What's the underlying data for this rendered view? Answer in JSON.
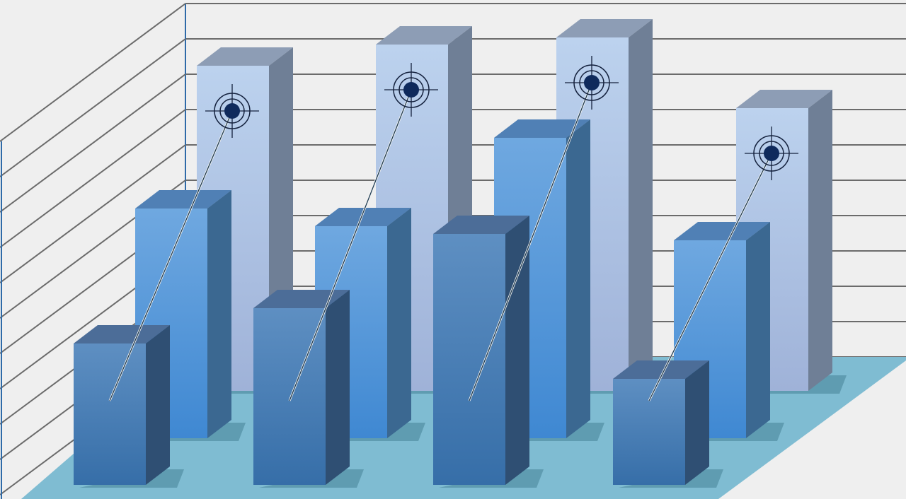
{
  "chart_data": {
    "type": "bar",
    "title": "",
    "xlabel": "",
    "ylabel": "",
    "grid": true,
    "style": "3d-clustered",
    "categories": [
      "",
      "",
      "",
      ""
    ],
    "series": [
      {
        "values": [
          9.2,
          9.8,
          10.0,
          8.0
        ],
        "has_target_marker": true
      },
      {
        "values": [
          6.5,
          6.0,
          8.5,
          5.6
        ]
      },
      {
        "values": [
          4.0,
          5.0,
          7.1,
          3.0
        ]
      }
    ],
    "ylim": [
      0,
      10
    ]
  },
  "colors": {
    "wall": "#efefef",
    "gridline": "#6b6b6b",
    "floor": "#7fbcd2",
    "back_series": "#b5cbea",
    "middle_series": "#5b9ee0",
    "front_series": "#4a7fb8",
    "target_dot": "#0f2a5c"
  }
}
